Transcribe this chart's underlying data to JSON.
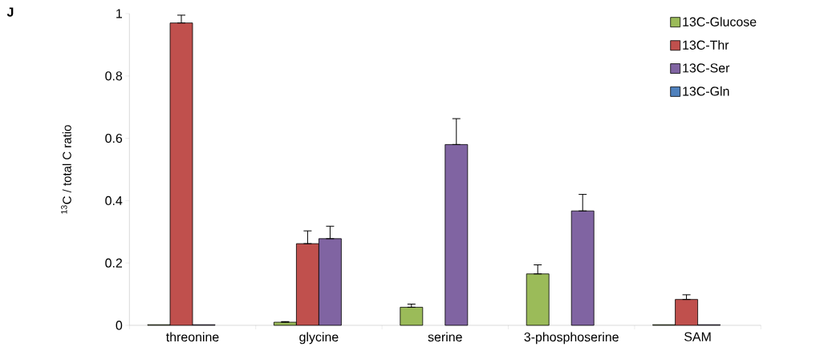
{
  "chart_data": {
    "type": "bar",
    "title": "J",
    "ylabel": "$^{13}$C / total C ratio",
    "categories": [
      "threonine",
      "glycine",
      "serine",
      "3-phosphoserine",
      "SAM"
    ],
    "series": [
      {
        "name": "13C-Glucose",
        "color": "#9bbb59",
        "values": [
          0.002,
          0.01,
          0.058,
          0.165,
          0.002
        ],
        "errors": [
          null,
          [
            0.01,
            0.012
          ],
          [
            0.058,
            0.068
          ],
          [
            0.165,
            0.194
          ],
          null
        ]
      },
      {
        "name": "13C-Thr",
        "color": "#c0504d",
        "values": [
          0.97,
          0.262,
          null,
          null,
          0.083
        ],
        "errors": [
          [
            0.97,
            0.995
          ],
          [
            0.262,
            0.303
          ],
          null,
          null,
          [
            0.083,
            0.098
          ]
        ]
      },
      {
        "name": "13C-Ser",
        "color": "#8064a2",
        "values": [
          0.002,
          0.278,
          0.58,
          0.367,
          0.002
        ],
        "errors": [
          null,
          [
            0.278,
            0.318
          ],
          [
            0.58,
            0.663
          ],
          [
            0.367,
            0.42
          ],
          null
        ]
      },
      {
        "name": "13C-Gln",
        "color": "#4f81bd",
        "values": [
          null,
          null,
          null,
          null,
          null
        ]
      }
    ],
    "ylim": [
      0,
      1
    ],
    "yticks": [
      0,
      0.2,
      0.4,
      0.6,
      0.8,
      1
    ],
    "grid": false,
    "legend": "top right"
  }
}
